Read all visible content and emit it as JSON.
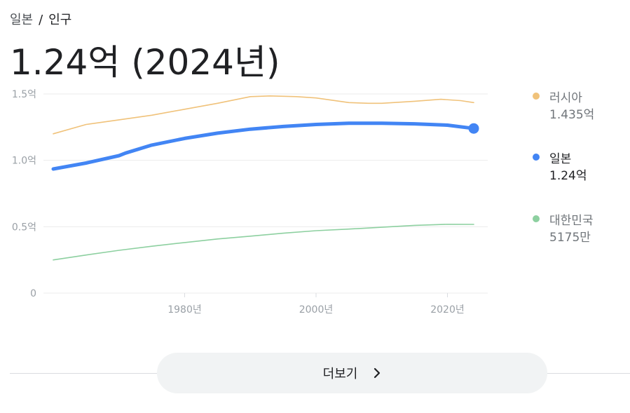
{
  "breadcrumb": {
    "parent": "일본",
    "separator": "/",
    "current": "인구"
  },
  "headline": "1.24억 (2024년)",
  "more_button_label": "더보기",
  "icons": {
    "more_chevron": "chevron-right-icon"
  },
  "chart_data": {
    "type": "line",
    "y_ticks": [
      {
        "value": 0,
        "label": "0"
      },
      {
        "value": 50000000,
        "label": "0.5억"
      },
      {
        "value": 100000000,
        "label": "1.0억"
      },
      {
        "value": 150000000,
        "label": "1.5억"
      }
    ],
    "x_ticks": [
      {
        "value": 1980,
        "label": "1980년"
      },
      {
        "value": 2000,
        "label": "2000년"
      },
      {
        "value": 2020,
        "label": "2020년"
      }
    ],
    "xlim": [
      1955,
      2026
    ],
    "ylim": [
      0,
      150000000
    ],
    "grid": true,
    "legend_position": "right",
    "series": [
      {
        "name": "러시아",
        "latest_label": "1.435억",
        "color": "#f0c27a",
        "highlight": false,
        "x": [
          1960,
          1965,
          1970,
          1975,
          1980,
          1985,
          1990,
          1993,
          1997,
          2000,
          2005,
          2008,
          2010,
          2015,
          2019,
          2022,
          2024
        ],
        "y": [
          120000000,
          127000000,
          130500000,
          134000000,
          138500000,
          143000000,
          148000000,
          148500000,
          148000000,
          147000000,
          143500000,
          143000000,
          143000000,
          144500000,
          146000000,
          145000000,
          143500000
        ]
      },
      {
        "name": "일본",
        "latest_label": "1.24억",
        "color": "#4285f4",
        "highlight": true,
        "x": [
          1960,
          1965,
          1970,
          1971,
          1975,
          1980,
          1985,
          1990,
          1995,
          2000,
          2005,
          2010,
          2015,
          2020,
          2024
        ],
        "y": [
          93500000,
          98000000,
          103500000,
          105500000,
          111500000,
          116500000,
          120500000,
          123500000,
          125500000,
          127000000,
          128000000,
          128000000,
          127500000,
          126500000,
          124000000
        ]
      },
      {
        "name": "대한민국",
        "latest_label": "5175만",
        "color": "#8dd0a0",
        "highlight": false,
        "x": [
          1960,
          1965,
          1970,
          1975,
          1980,
          1985,
          1990,
          1995,
          2000,
          2005,
          2010,
          2015,
          2020,
          2024
        ],
        "y": [
          25000000,
          28700000,
          32200000,
          35300000,
          38100000,
          40800000,
          42900000,
          45100000,
          47000000,
          48200000,
          49600000,
          51000000,
          51800000,
          51750000
        ]
      }
    ]
  }
}
